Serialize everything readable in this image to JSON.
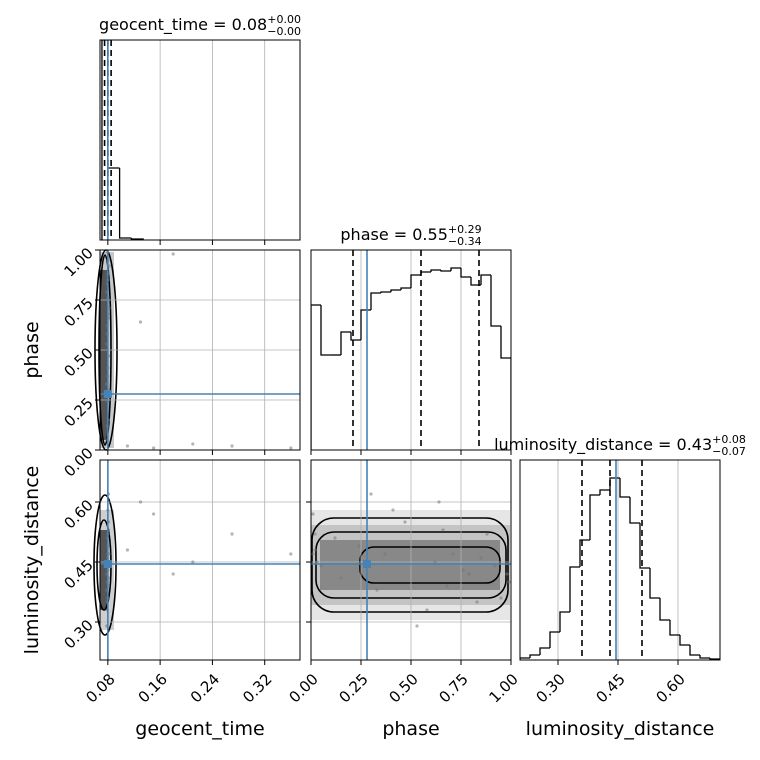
{
  "chart_data": {
    "type": "corner",
    "count_lim": [
      0,
      1
    ],
    "truth_color": "#4682b4",
    "grid": true,
    "parameters": [
      {
        "label": "geocent_time",
        "title": "geocent_time = 0.08",
        "title_plus": "+0.00",
        "title_minus": "−0.00",
        "lim": [
          0.068,
          0.374
        ],
        "ticks": [
          0.08,
          0.16,
          0.24,
          0.32
        ],
        "truth": 0.08,
        "quantiles": [
          0.075,
          0.08,
          0.085
        ],
        "bins": [
          0.071,
          0.08,
          0.098,
          0.116,
          0.134
        ],
        "counts": [
          1.0,
          0.36,
          0.01,
          0.005
        ],
        "samples": [
          0.079,
          0.081,
          0.08,
          0.078,
          0.082,
          0.079,
          0.08,
          0.081,
          0.078,
          0.08,
          0.079,
          0.082,
          0.08,
          0.081,
          0.079,
          0.08,
          0.078,
          0.081,
          0.08,
          0.079,
          0.11,
          0.15,
          0.21,
          0.27,
          0.36,
          0.13,
          0.18,
          0.08,
          0.079,
          0.081
        ]
      },
      {
        "label": "phase",
        "title": "phase = 0.55",
        "title_plus": "+0.29",
        "title_minus": "−0.34",
        "lim": [
          0,
          1
        ],
        "ticks": [
          {
            "value": 0,
            "label": "0.00"
          },
          0.25,
          {
            "value": 0.5,
            "label": "0.50"
          },
          0.75,
          {
            "value": 1,
            "label": "1.00"
          }
        ],
        "truth": 0.28,
        "quantiles": [
          0.21,
          0.55,
          0.84
        ],
        "bins": [
          0,
          0.05,
          0.1,
          0.15,
          0.2,
          0.25,
          0.3,
          0.35,
          0.4,
          0.45,
          0.5,
          0.55,
          0.6,
          0.65,
          0.7,
          0.75,
          0.8,
          0.85,
          0.9,
          0.95,
          1
        ],
        "counts": [
          0.725,
          0.475,
          0.475,
          0.59,
          0.55,
          0.7,
          0.785,
          0.79,
          0.8,
          0.81,
          0.875,
          0.89,
          0.9,
          0.895,
          0.91,
          0.865,
          0.825,
          0.875,
          0.62,
          0.46
        ],
        "samples": [
          0.62,
          0.15,
          0.88,
          0.33,
          0.71,
          0.05,
          0.95,
          0.47,
          0.79,
          0.24,
          0.58,
          0.92,
          0.41,
          0.68,
          0.12,
          0.85,
          0.53,
          0.3,
          0.76,
          0.99,
          0.02,
          0.01,
          0.03,
          0.02,
          0.01,
          0.64,
          0.98,
          0.37,
          0.83,
          0.66
        ]
      },
      {
        "label": "luminosity_distance",
        "title": "luminosity_distance = 0.43",
        "title_plus": "+0.08",
        "title_minus": "−0.07",
        "lim": [
          0.205,
          0.705
        ],
        "ticks": [
          {
            "value": 0.3,
            "label": "0.30"
          },
          0.45,
          {
            "value": 0.6,
            "label": "0.60"
          }
        ],
        "truth": 0.445,
        "quantiles": [
          0.36,
          0.43,
          0.51
        ],
        "bins": [
          0.205,
          0.23,
          0.255,
          0.28,
          0.305,
          0.33,
          0.355,
          0.38,
          0.405,
          0.43,
          0.455,
          0.48,
          0.505,
          0.53,
          0.555,
          0.58,
          0.605,
          0.63,
          0.655,
          0.68,
          0.705
        ],
        "counts": [
          0.01,
          0.025,
          0.06,
          0.14,
          0.24,
          0.465,
          0.6,
          0.825,
          0.85,
          0.91,
          0.815,
          0.685,
          0.46,
          0.31,
          0.2,
          0.125,
          0.075,
          0.025,
          0.01,
          0.005
        ],
        "samples": [
          0.45,
          0.41,
          0.52,
          0.38,
          0.47,
          0.44,
          0.36,
          0.55,
          0.42,
          0.49,
          0.33,
          0.44,
          0.58,
          0.39,
          0.51,
          0.46,
          0.29,
          0.62,
          0.43,
          0.4,
          0.48,
          0.57,
          0.45,
          0.52,
          0.47,
          0.6,
          0.42,
          0.47,
          0.35,
          0.53
        ]
      }
    ]
  }
}
